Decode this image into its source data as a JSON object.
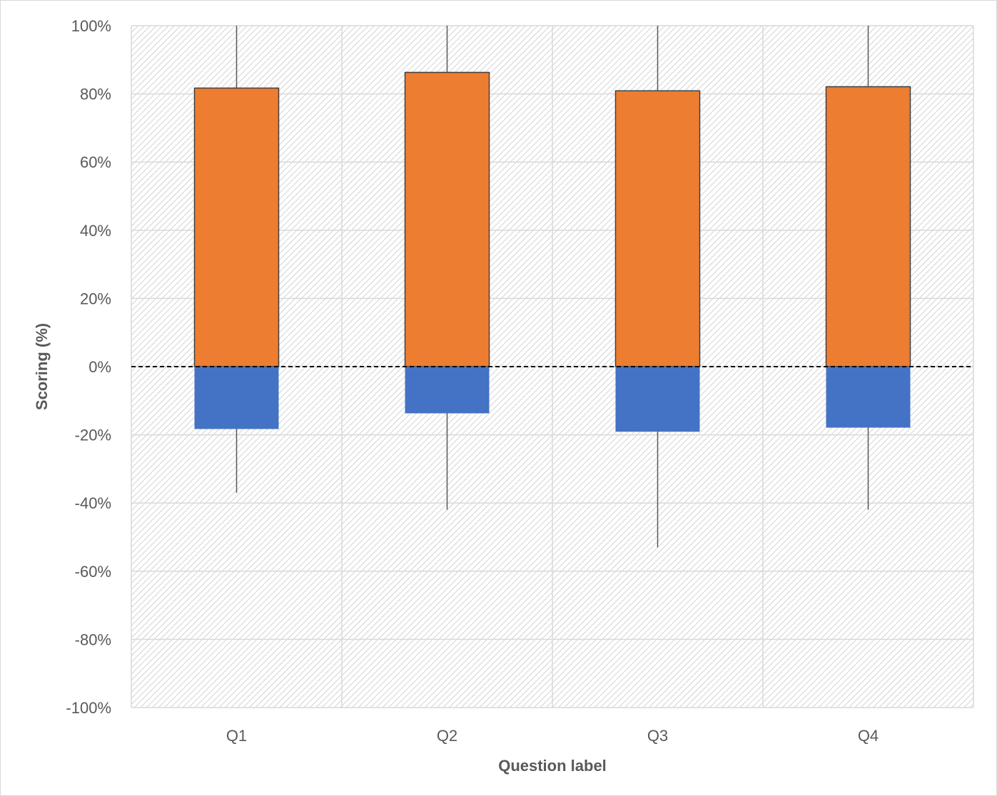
{
  "chart_data": {
    "type": "bar",
    "stacked": true,
    "categories": [
      "Q1",
      "Q2",
      "Q3",
      "Q4"
    ],
    "series": [
      {
        "color": "#ED7D31",
        "values": [
          81.7,
          86.3,
          80.9,
          82.1
        ]
      },
      {
        "color": "#4472C4",
        "values": [
          -18.3,
          -13.7,
          -19.1,
          -17.9
        ]
      }
    ],
    "error_range": {
      "upper": [
        100,
        100,
        100,
        100
      ],
      "lower": [
        -37,
        -42,
        -53,
        -42
      ]
    },
    "reference_line": {
      "y": 0,
      "style": "dashed"
    },
    "xlabel": "Question label",
    "ylabel": "Scoring (%)",
    "ylim": [
      -100,
      100
    ],
    "y_ticks": [
      "100%",
      "80%",
      "60%",
      "40%",
      "20%",
      "0%",
      "-20%",
      "-40%",
      "-60%",
      "-80%",
      "-100%"
    ],
    "y_tick_values": [
      100,
      80,
      60,
      40,
      20,
      0,
      -20,
      -40,
      -60,
      -80,
      -100
    ],
    "grid": true,
    "background_pattern": "diagonal-hatch"
  }
}
